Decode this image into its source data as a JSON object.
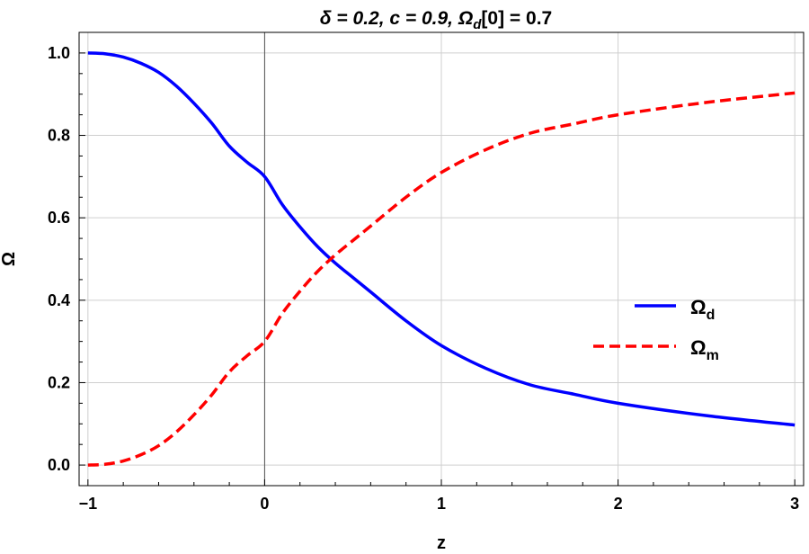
{
  "chart_data": {
    "type": "line",
    "title": {
      "prefix": "δ = 0.2, c = 0.9, Ω",
      "sub": "d",
      "suffix": "[0] = 0.7"
    },
    "xlabel": "z",
    "ylabel": "Ω",
    "xlim": [
      -1.05,
      3.05
    ],
    "ylim": [
      -0.05,
      1.05
    ],
    "x_ticks": [
      -1,
      0,
      1,
      2,
      3
    ],
    "x_tick_labels": [
      "−1",
      "0",
      "1",
      "2",
      "3"
    ],
    "y_ticks": [
      0.0,
      0.2,
      0.4,
      0.6,
      0.8,
      1.0
    ],
    "y_tick_labels": [
      "0.0",
      "0.2",
      "0.4",
      "0.6",
      "0.8",
      "1.0"
    ],
    "grid": true,
    "legend_position": "right",
    "x": [
      -1.0,
      -0.9,
      -0.8,
      -0.7,
      -0.6,
      -0.5,
      -0.4,
      -0.3,
      -0.2,
      -0.1,
      0.0,
      0.1,
      0.2,
      0.3,
      0.4,
      0.5,
      0.6,
      0.8,
      1.0,
      1.25,
      1.5,
      1.75,
      2.0,
      2.5,
      3.0
    ],
    "series": [
      {
        "name": "Ω",
        "name_sub": "d",
        "color": "#0000ff",
        "style": "solid",
        "values": [
          1.0,
          0.998,
          0.99,
          0.975,
          0.953,
          0.92,
          0.878,
          0.83,
          0.774,
          0.735,
          0.7,
          0.632,
          0.578,
          0.53,
          0.49,
          0.455,
          0.42,
          0.35,
          0.29,
          0.235,
          0.195,
          0.172,
          0.15,
          0.12,
          0.097
        ]
      },
      {
        "name": "Ω",
        "name_sub": "m",
        "color": "#ff0000",
        "style": "dashed",
        "values": [
          0.0,
          0.002,
          0.01,
          0.025,
          0.047,
          0.08,
          0.122,
          0.17,
          0.226,
          0.265,
          0.3,
          0.368,
          0.422,
          0.47,
          0.51,
          0.545,
          0.58,
          0.65,
          0.71,
          0.765,
          0.805,
          0.828,
          0.85,
          0.88,
          0.903
        ]
      }
    ]
  }
}
